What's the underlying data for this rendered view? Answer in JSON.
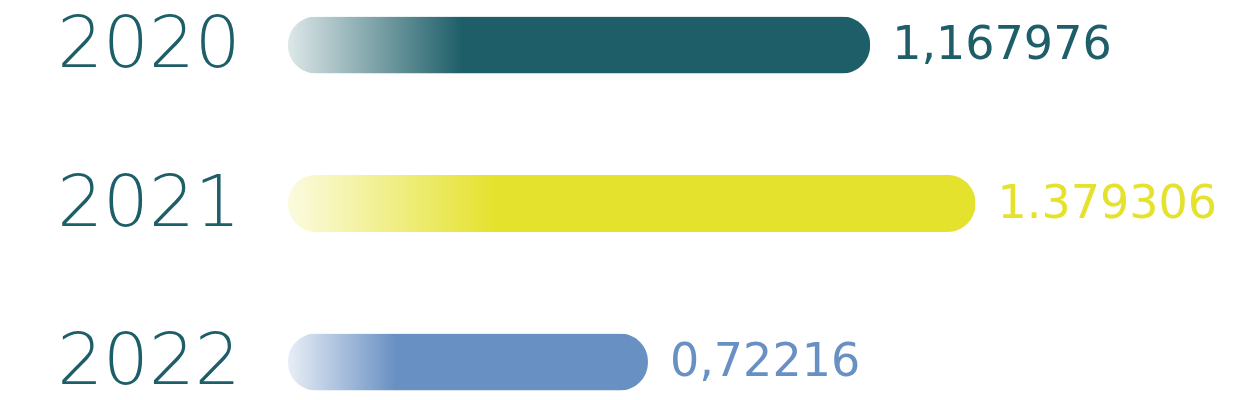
{
  "chart_data": {
    "type": "bar",
    "orientation": "horizontal",
    "categories": [
      "2020",
      "2021",
      "2022"
    ],
    "values": [
      1.167976,
      1.379306,
      0.72216
    ],
    "value_labels": [
      "1,167976",
      "1.379306",
      "0,72216"
    ],
    "colors": [
      "#1d5e68",
      "#e5e22e",
      "#6890c2"
    ],
    "xlim": [
      0,
      1.93
    ],
    "tick_labels": "y"
  }
}
